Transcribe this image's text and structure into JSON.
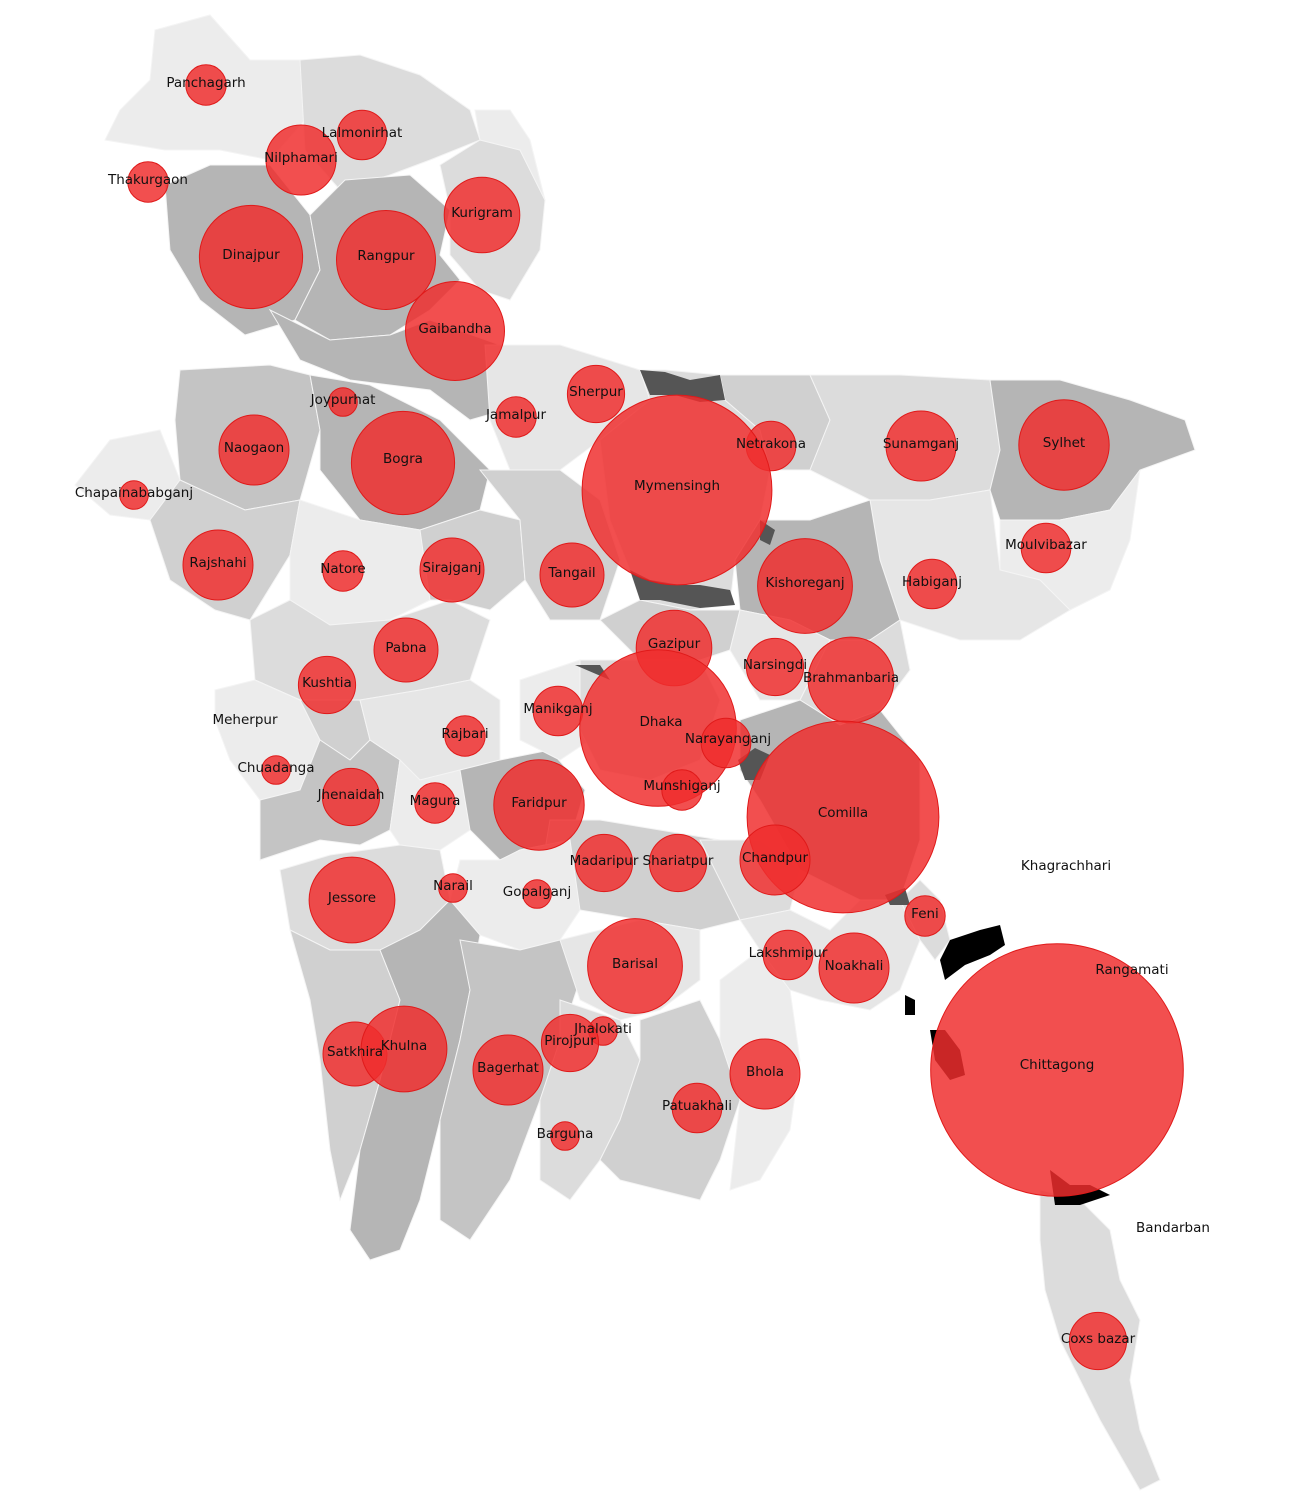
{
  "colors": {
    "bubble": "#f02d2d",
    "region_light": "#ececec",
    "region_mid": "#dcdcdc",
    "region_dark": "#b5b5b5",
    "region_darker": "#555555",
    "region_black": "#000000"
  },
  "districts": [
    {
      "name": "Panchagarh",
      "value": 2
    },
    {
      "name": "Lalmonirhat",
      "value": 3
    },
    {
      "name": "Nilphamari",
      "value": 6
    },
    {
      "name": "Thakurgaon",
      "value": 2
    },
    {
      "name": "Kurigram",
      "value": 7
    },
    {
      "name": "Dinajpur",
      "value": 13
    },
    {
      "name": "Rangpur",
      "value": 12
    },
    {
      "name": "Gaibandha",
      "value": 12
    },
    {
      "name": "Joypurhat",
      "value": 1
    },
    {
      "name": "Sherpur",
      "value": 4
    },
    {
      "name": "Jamalpur",
      "value": 2
    },
    {
      "name": "Naogaon",
      "value": 6
    },
    {
      "name": "Bogra",
      "value": 13
    },
    {
      "name": "Netrakona",
      "value": 3
    },
    {
      "name": "Sunamganj",
      "value": 6
    },
    {
      "name": "Sylhet",
      "value": 10
    },
    {
      "name": "Mymensingh",
      "value": 44
    },
    {
      "name": "Chapainababganj",
      "value": 1
    },
    {
      "name": "Moulvibazar",
      "value": 3
    },
    {
      "name": "Rajshahi",
      "value": 6
    },
    {
      "name": "Natore",
      "value": 2
    },
    {
      "name": "Sirajganj",
      "value": 5
    },
    {
      "name": "Tangail",
      "value": 5
    },
    {
      "name": "Kishoreganj",
      "value": 11
    },
    {
      "name": "Habiganj",
      "value": 3
    },
    {
      "name": "Gazipur",
      "value": 7
    },
    {
      "name": "Pabna",
      "value": 5
    },
    {
      "name": "Narsingdi",
      "value": 4
    },
    {
      "name": "Brahmanbaria",
      "value": 9
    },
    {
      "name": "Kushtia",
      "value": 4
    },
    {
      "name": "Manikganj",
      "value": 3
    },
    {
      "name": "Dhaka",
      "value": 30
    },
    {
      "name": "Meherpur",
      "value": 0
    },
    {
      "name": "Rajbari",
      "value": 2
    },
    {
      "name": "Narayanganj",
      "value": 3
    },
    {
      "name": "Chuadanga",
      "value": 1
    },
    {
      "name": "Munshiganj",
      "value": 2
    },
    {
      "name": "Comilla",
      "value": 45
    },
    {
      "name": "Jhenaidah",
      "value": 4
    },
    {
      "name": "Magura",
      "value": 2
    },
    {
      "name": "Faridpur",
      "value": 10
    },
    {
      "name": "Madaripur",
      "value": 4
    },
    {
      "name": "Shariatpur",
      "value": 4
    },
    {
      "name": "Chandpur",
      "value": 6
    },
    {
      "name": "Khagrachhari",
      "value": 0
    },
    {
      "name": "Jessore",
      "value": 9
    },
    {
      "name": "Narail",
      "value": 1
    },
    {
      "name": "Gopalganj",
      "value": 1
    },
    {
      "name": "Feni",
      "value": 2
    },
    {
      "name": "Rangamati",
      "value": 0
    },
    {
      "name": "Barisal",
      "value": 11
    },
    {
      "name": "Lakshmipur",
      "value": 3
    },
    {
      "name": "Noakhali",
      "value": 6
    },
    {
      "name": "Jhalokati",
      "value": 1
    },
    {
      "name": "Satkhira",
      "value": 5
    },
    {
      "name": "Khulna",
      "value": 9
    },
    {
      "name": "Pirojpur",
      "value": 4
    },
    {
      "name": "Bagerhat",
      "value": 6
    },
    {
      "name": "Bhola",
      "value": 6
    },
    {
      "name": "Chittagong",
      "value": 78
    },
    {
      "name": "Patuakhali",
      "value": 3
    },
    {
      "name": "Barguna",
      "value": 1
    },
    {
      "name": "Bandarban",
      "value": 0
    },
    {
      "name": "Coxs bazar",
      "value": 4
    }
  ]
}
